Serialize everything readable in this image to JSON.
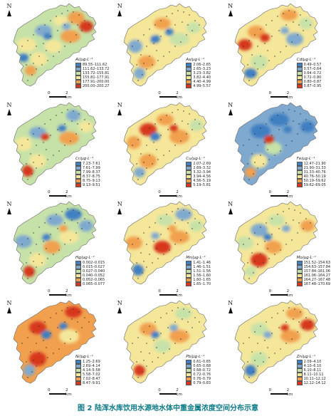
{
  "north_label": "N",
  "scale": {
    "zero": "0",
    "unit": "2 km"
  },
  "caption": {
    "figure": "图 2",
    "text": "陆浑水库饮用水源地水体中重金属浓度空间分布示意"
  },
  "palette": [
    "#3f7fc2",
    "#7fa9cf",
    "#c7e2a8",
    "#f5e79a",
    "#f1a04e",
    "#d7371f"
  ],
  "panels": [
    {
      "id": "al",
      "legend_title": "Al/μg·L⁻¹",
      "dominant": 2,
      "classes": [
        "89.55–111.62",
        "111.62–133.72",
        "133.72–155.81",
        "155.81–177.91",
        "177.91–200.00",
        "200.00–200.27"
      ]
    },
    {
      "id": "as",
      "legend_title": "As/μg·L⁻¹",
      "dominant": 3,
      "classes": [
        "2.06–2.65",
        "2.65–3.23",
        "3.23–3.82",
        "3.82–4.40",
        "4.40–4.99",
        "4.99–5.57"
      ]
    },
    {
      "id": "cd",
      "legend_title": "Cd/μg·L⁻¹",
      "dominant": 3,
      "classes": [
        "0.49–0.57",
        "0.57–0.64",
        "0.64–0.72",
        "0.72–0.80",
        "0.80–0.87",
        "0.87–0.95"
      ]
    },
    {
      "id": "cr",
      "legend_title": "Cr/μg·L⁻¹",
      "dominant": 2,
      "classes": [
        "7.23–7.61",
        "7.61–7.99",
        "7.99–8.37",
        "8.37–8.75",
        "8.75–9.13",
        "9.13–9.51"
      ]
    },
    {
      "id": "cu",
      "legend_title": "Cu/μg·L⁻¹",
      "dominant": 3,
      "classes": [
        "2.07–2.69",
        "2.69–3.32",
        "3.32–3.94",
        "3.94–4.56",
        "4.56–5.19",
        "5.19–5.81"
      ]
    },
    {
      "id": "fe",
      "legend_title": "Fe/μg·L⁻¹",
      "dominant": 1,
      "classes": [
        "12.47–21.90",
        "21.90–31.33",
        "31.33–40.76",
        "40.76–50.19",
        "50.19–59.62",
        "59.62–69.05"
      ]
    },
    {
      "id": "hg",
      "legend_title": "Hg/μg·L⁻¹",
      "dominant": 2,
      "classes": [
        "0.002–0.015",
        "0.015–0.027",
        "0.027–0.040",
        "0.040–0.052",
        "0.052–0.065",
        "0.065–0.077"
      ]
    },
    {
      "id": "mn",
      "legend_title": "Mn/μg·L⁻¹",
      "dominant": 3,
      "classes": [
        "1.41–1.46",
        "1.46–1.51",
        "1.51–1.56",
        "1.56–1.60",
        "1.60–1.65",
        "1.65–1.70"
      ]
    },
    {
      "id": "mo",
      "legend_title": "Mo/μg·L⁻¹",
      "dominant": 3,
      "classes": [
        "151.52–154.63",
        "154.63–157.84",
        "157.84–161.06",
        "161.06–164.27",
        "164.27–167.48",
        "167.48–170.69"
      ]
    },
    {
      "id": "ni",
      "legend_title": "Ni/μg·L⁻¹",
      "dominant": 4,
      "classes": [
        "1.25–2.69",
        "2.69–4.14",
        "4.14–5.58",
        "5.58–7.02",
        "7.02–8.47",
        "8.47–9.91"
      ]
    },
    {
      "id": "pb",
      "legend_title": "Pb/μg·L⁻¹",
      "dominant": 3,
      "classes": [
        "0.61–0.65",
        "0.65–0.68",
        "0.68–0.72",
        "0.72–0.76",
        "0.76–0.79",
        "0.79–0.83"
      ]
    },
    {
      "id": "zn",
      "legend_title": "Zn/μg·L⁻¹",
      "dominant": 3,
      "classes": [
        "2.09–4.10",
        "4.10–6.10",
        "6.10–8.11",
        "8.11–10.11",
        "10.11–12.12",
        "12.12–14.12"
      ]
    }
  ]
}
